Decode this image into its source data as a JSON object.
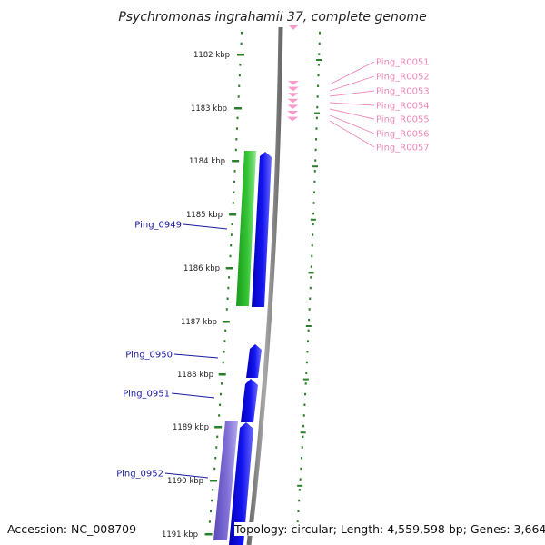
{
  "title": "Psychromonas ingrahamii 37, complete genome",
  "footer": {
    "accession": "Accession: NC_008709",
    "topology": "Topology: circular; Length: 4,559,598 bp; Genes: 3,664"
  },
  "colors": {
    "background": "#ffffff",
    "backbone": "#888888",
    "tick": "#2a7f2a",
    "forward_cds": "#1010e6",
    "reverse_cds_green": "#2cc02c",
    "reverse_cds_purple": "#7a68d0",
    "rna": "#ff99cc",
    "cds_label": "#1a1aa0",
    "rna_label": "#ee88bb"
  },
  "ruler": {
    "unit": "kbp",
    "tick_labels": [
      "1182 kbp",
      "1183 kbp",
      "1184 kbp",
      "1185 kbp",
      "1186 kbp",
      "1187 kbp",
      "1188 kbp",
      "1189 kbp",
      "1190 kbp",
      "1191 kbp"
    ]
  },
  "features": {
    "cds_labels": [
      "Ping_0949",
      "Ping_0950",
      "Ping_0951",
      "Ping_0952"
    ],
    "rna_labels": [
      "Ping_R0051",
      "Ping_R0052",
      "Ping_R0053",
      "Ping_R0054",
      "Ping_R0055",
      "Ping_R0056",
      "Ping_R0057"
    ]
  }
}
